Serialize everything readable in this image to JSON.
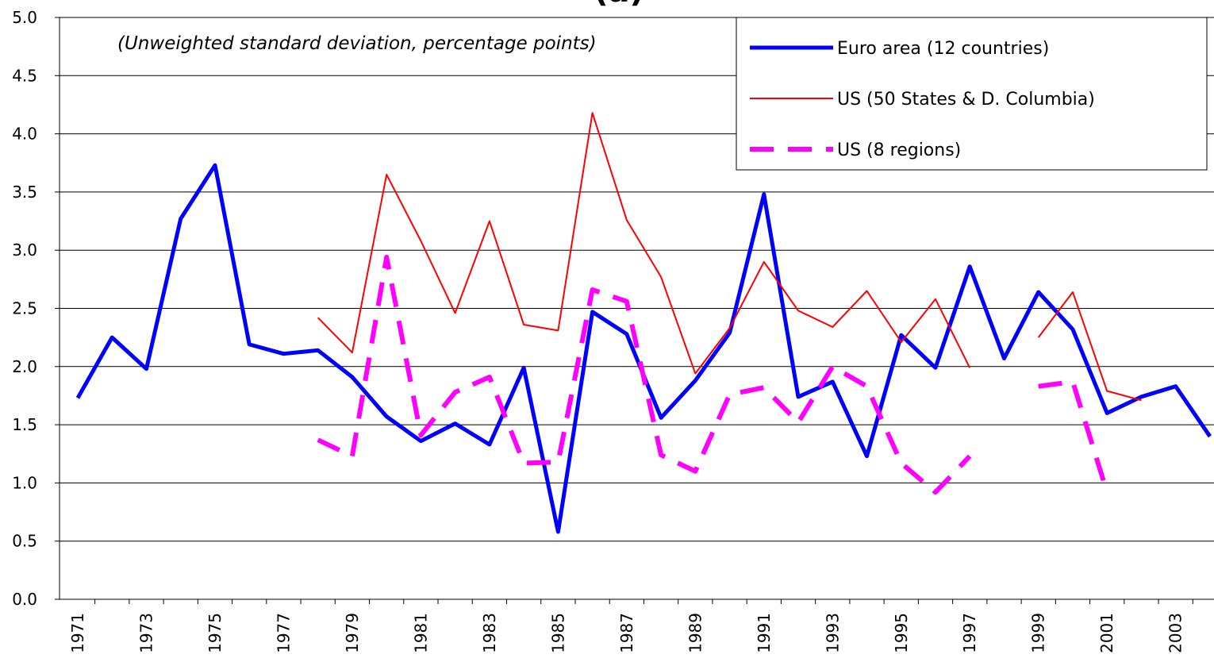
{
  "chart_data": {
    "type": "line",
    "title": "(a)",
    "subtitle": "(Unweighted standard deviation, percentage points)",
    "categories": [
      "1971",
      null,
      "1973",
      null,
      "1975",
      null,
      "1977",
      null,
      "1979",
      null,
      "1981",
      null,
      "1983",
      null,
      "1985",
      null,
      "1987",
      null,
      "1989",
      null,
      "1991",
      null,
      "1993",
      null,
      "1995",
      null,
      "1997",
      null,
      "1999",
      null,
      "2001",
      null,
      "2003",
      null
    ],
    "series": [
      {
        "name": "Euro area (12 countries)",
        "color": "#0000ff",
        "width": 5,
        "dash": "none",
        "values": [
          1.73,
          2.25,
          1.98,
          3.27,
          3.73,
          2.19,
          2.11,
          2.14,
          1.91,
          1.57,
          1.36,
          1.51,
          1.33,
          1.99,
          0.58,
          2.47,
          2.28,
          1.56,
          1.88,
          2.29,
          3.48,
          1.74,
          1.87,
          1.23,
          2.27,
          1.99,
          2.86,
          2.07,
          2.64,
          2.32,
          1.6,
          1.74,
          1.83,
          1.4
        ]
      },
      {
        "name": "US (50 States & D. Columbia)",
        "color": "#ff0000",
        "width": 2,
        "dash": "none",
        "values": [
          null,
          null,
          null,
          null,
          null,
          null,
          null,
          2.42,
          2.12,
          3.65,
          3.08,
          2.46,
          3.25,
          2.36,
          2.31,
          4.18,
          3.26,
          2.77,
          1.94,
          2.33,
          2.9,
          2.48,
          2.34,
          2.65,
          2.21,
          2.58,
          1.99,
          null,
          2.25,
          2.64,
          1.79,
          1.71,
          null,
          null
        ]
      },
      {
        "name": "US (8 regions)",
        "color": "#ff00ff",
        "width": 6,
        "dash": "30,18",
        "values": [
          null,
          null,
          null,
          null,
          null,
          null,
          null,
          1.37,
          1.23,
          2.94,
          1.41,
          1.78,
          1.91,
          1.17,
          1.18,
          2.66,
          2.56,
          1.24,
          1.1,
          1.76,
          1.82,
          1.52,
          2.0,
          1.83,
          1.17,
          0.92,
          1.23,
          null,
          1.83,
          1.87,
          0.92,
          null,
          null,
          null
        ]
      }
    ],
    "ylim": [
      0,
      5
    ],
    "yticks": [
      {
        "value": 0,
        "label": "0.0"
      },
      0.5,
      {
        "value": 1,
        "label": "1.0"
      },
      1.5,
      {
        "value": 2,
        "label": "2.0"
      },
      2.5,
      {
        "value": 3,
        "label": "3.0"
      },
      3.5,
      {
        "value": 4,
        "label": "4.0"
      },
      4.5,
      {
        "value": 5,
        "label": "5.0"
      }
    ],
    "grid": true,
    "legend": "top-right"
  }
}
